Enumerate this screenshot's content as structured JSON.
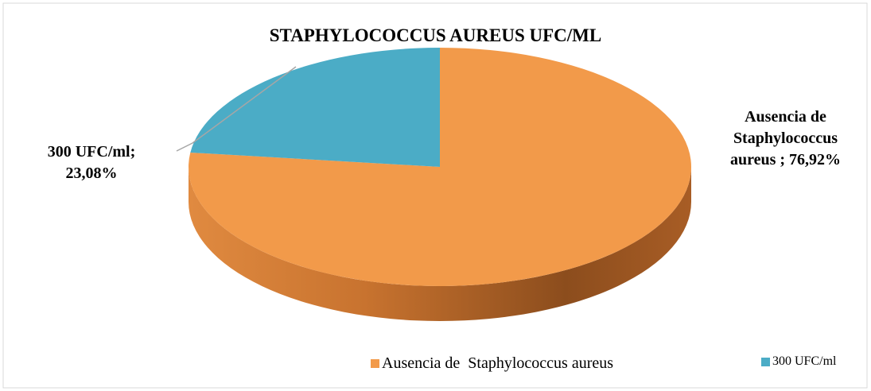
{
  "chart_data": {
    "type": "pie",
    "title": "STAPHYLOCOCCUS AUREUS UFC/ML",
    "categories": [
      "Ausencia de  Staphylococcus aureus",
      "300 UFC/ml"
    ],
    "values": [
      76.92,
      23.08
    ],
    "value_labels": [
      "Ausencia de Staphylococcus aureus ; 76,92%",
      "300 UFC/ml; 23,08%"
    ],
    "colors": [
      "#f29a4a",
      "#4bacc6"
    ],
    "legend": "bottom"
  }
}
